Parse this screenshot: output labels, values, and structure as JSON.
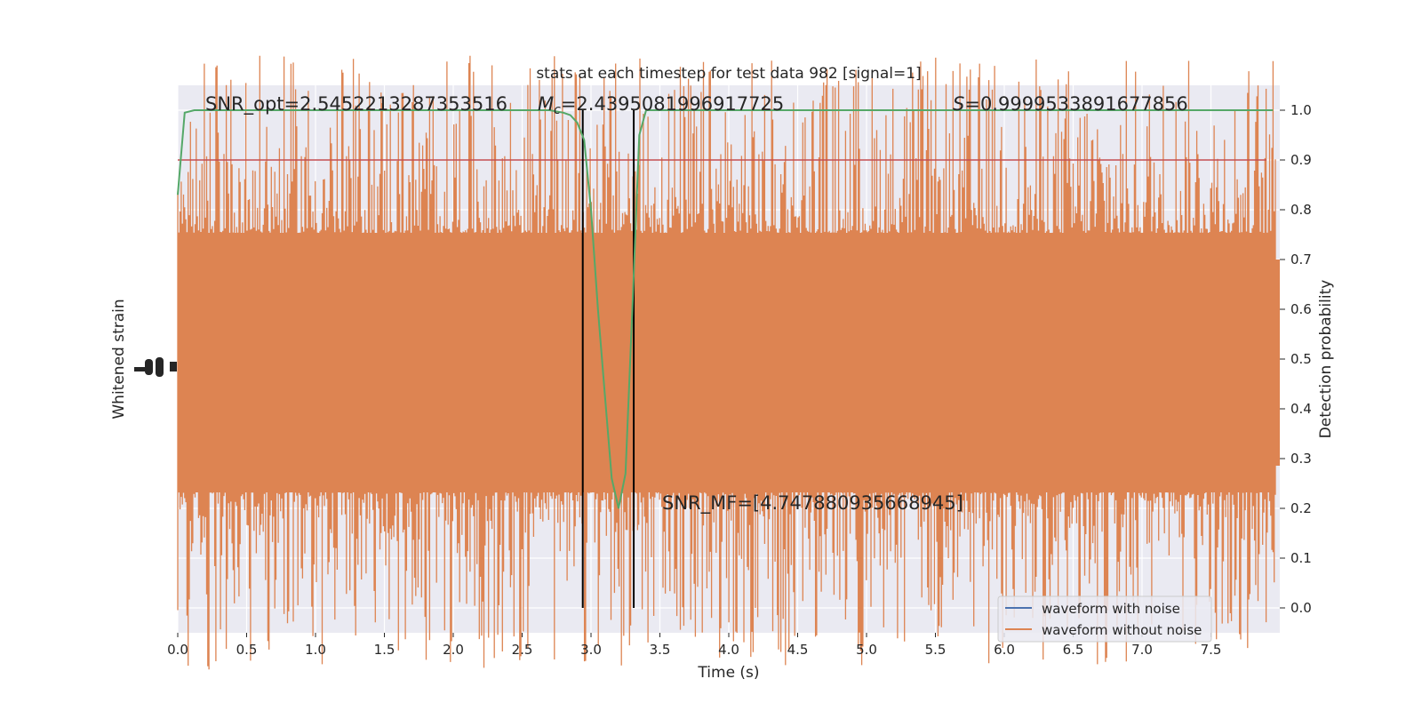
{
  "chart_data": {
    "type": "line",
    "title": "stats at each timestep for test data 982 [signal=1]",
    "xlabel": "Time (s)",
    "ylabel_left": "Whitened strain",
    "ylabel_right": "Detection probability",
    "xlim": [
      0,
      8
    ],
    "ylim_right": [
      -0.05,
      1.05
    ],
    "x_ticks": [
      "0.0",
      "0.5",
      "1.0",
      "1.5",
      "2.0",
      "2.5",
      "3.0",
      "3.5",
      "4.0",
      "4.5",
      "5.0",
      "5.5",
      "6.0",
      "6.5",
      "7.0",
      "7.5"
    ],
    "y_ticks_right": [
      "0.0",
      "0.1",
      "0.2",
      "0.3",
      "0.4",
      "0.5",
      "0.6",
      "0.7",
      "0.8",
      "0.9",
      "1.0"
    ],
    "grid": true,
    "annotations": {
      "snr_opt": "SNR_opt=2.5452213287353516",
      "mc_symbol": "M",
      "mc_sub": "c",
      "mc_value": "=2.4395081996917725",
      "s_symbol": "S",
      "s_value": "=0.9999533891677856",
      "snr_mf": "SNR_MF=[4.747880935668945]"
    },
    "threshold": 0.9,
    "event_lines_x": [
      2.94,
      3.31
    ],
    "series": [
      {
        "name": "waveform with noise",
        "color": "#4c72b0"
      },
      {
        "name": "waveform without noise",
        "color": "#dd8452"
      },
      {
        "color": "#55a868",
        "x": [
          0.0,
          0.05,
          0.12,
          0.3,
          0.6,
          1.0,
          1.5,
          2.0,
          2.5,
          2.7,
          2.8,
          2.85,
          2.9,
          2.95,
          3.0,
          3.05,
          3.1,
          3.15,
          3.2,
          3.25,
          3.3,
          3.35,
          3.4,
          3.45,
          3.5,
          4.0,
          5.0,
          6.0,
          7.0,
          7.95
        ],
        "y": [
          0.83,
          0.995,
          1.0,
          1.0,
          1.0,
          1.0,
          1.0,
          1.0,
          1.0,
          1.0,
          0.995,
          0.99,
          0.975,
          0.94,
          0.8,
          0.6,
          0.43,
          0.26,
          0.2,
          0.27,
          0.6,
          0.95,
          1.0,
          1.0,
          1.0,
          1.0,
          1.0,
          1.0,
          1.0,
          1.0
        ]
      }
    ]
  }
}
